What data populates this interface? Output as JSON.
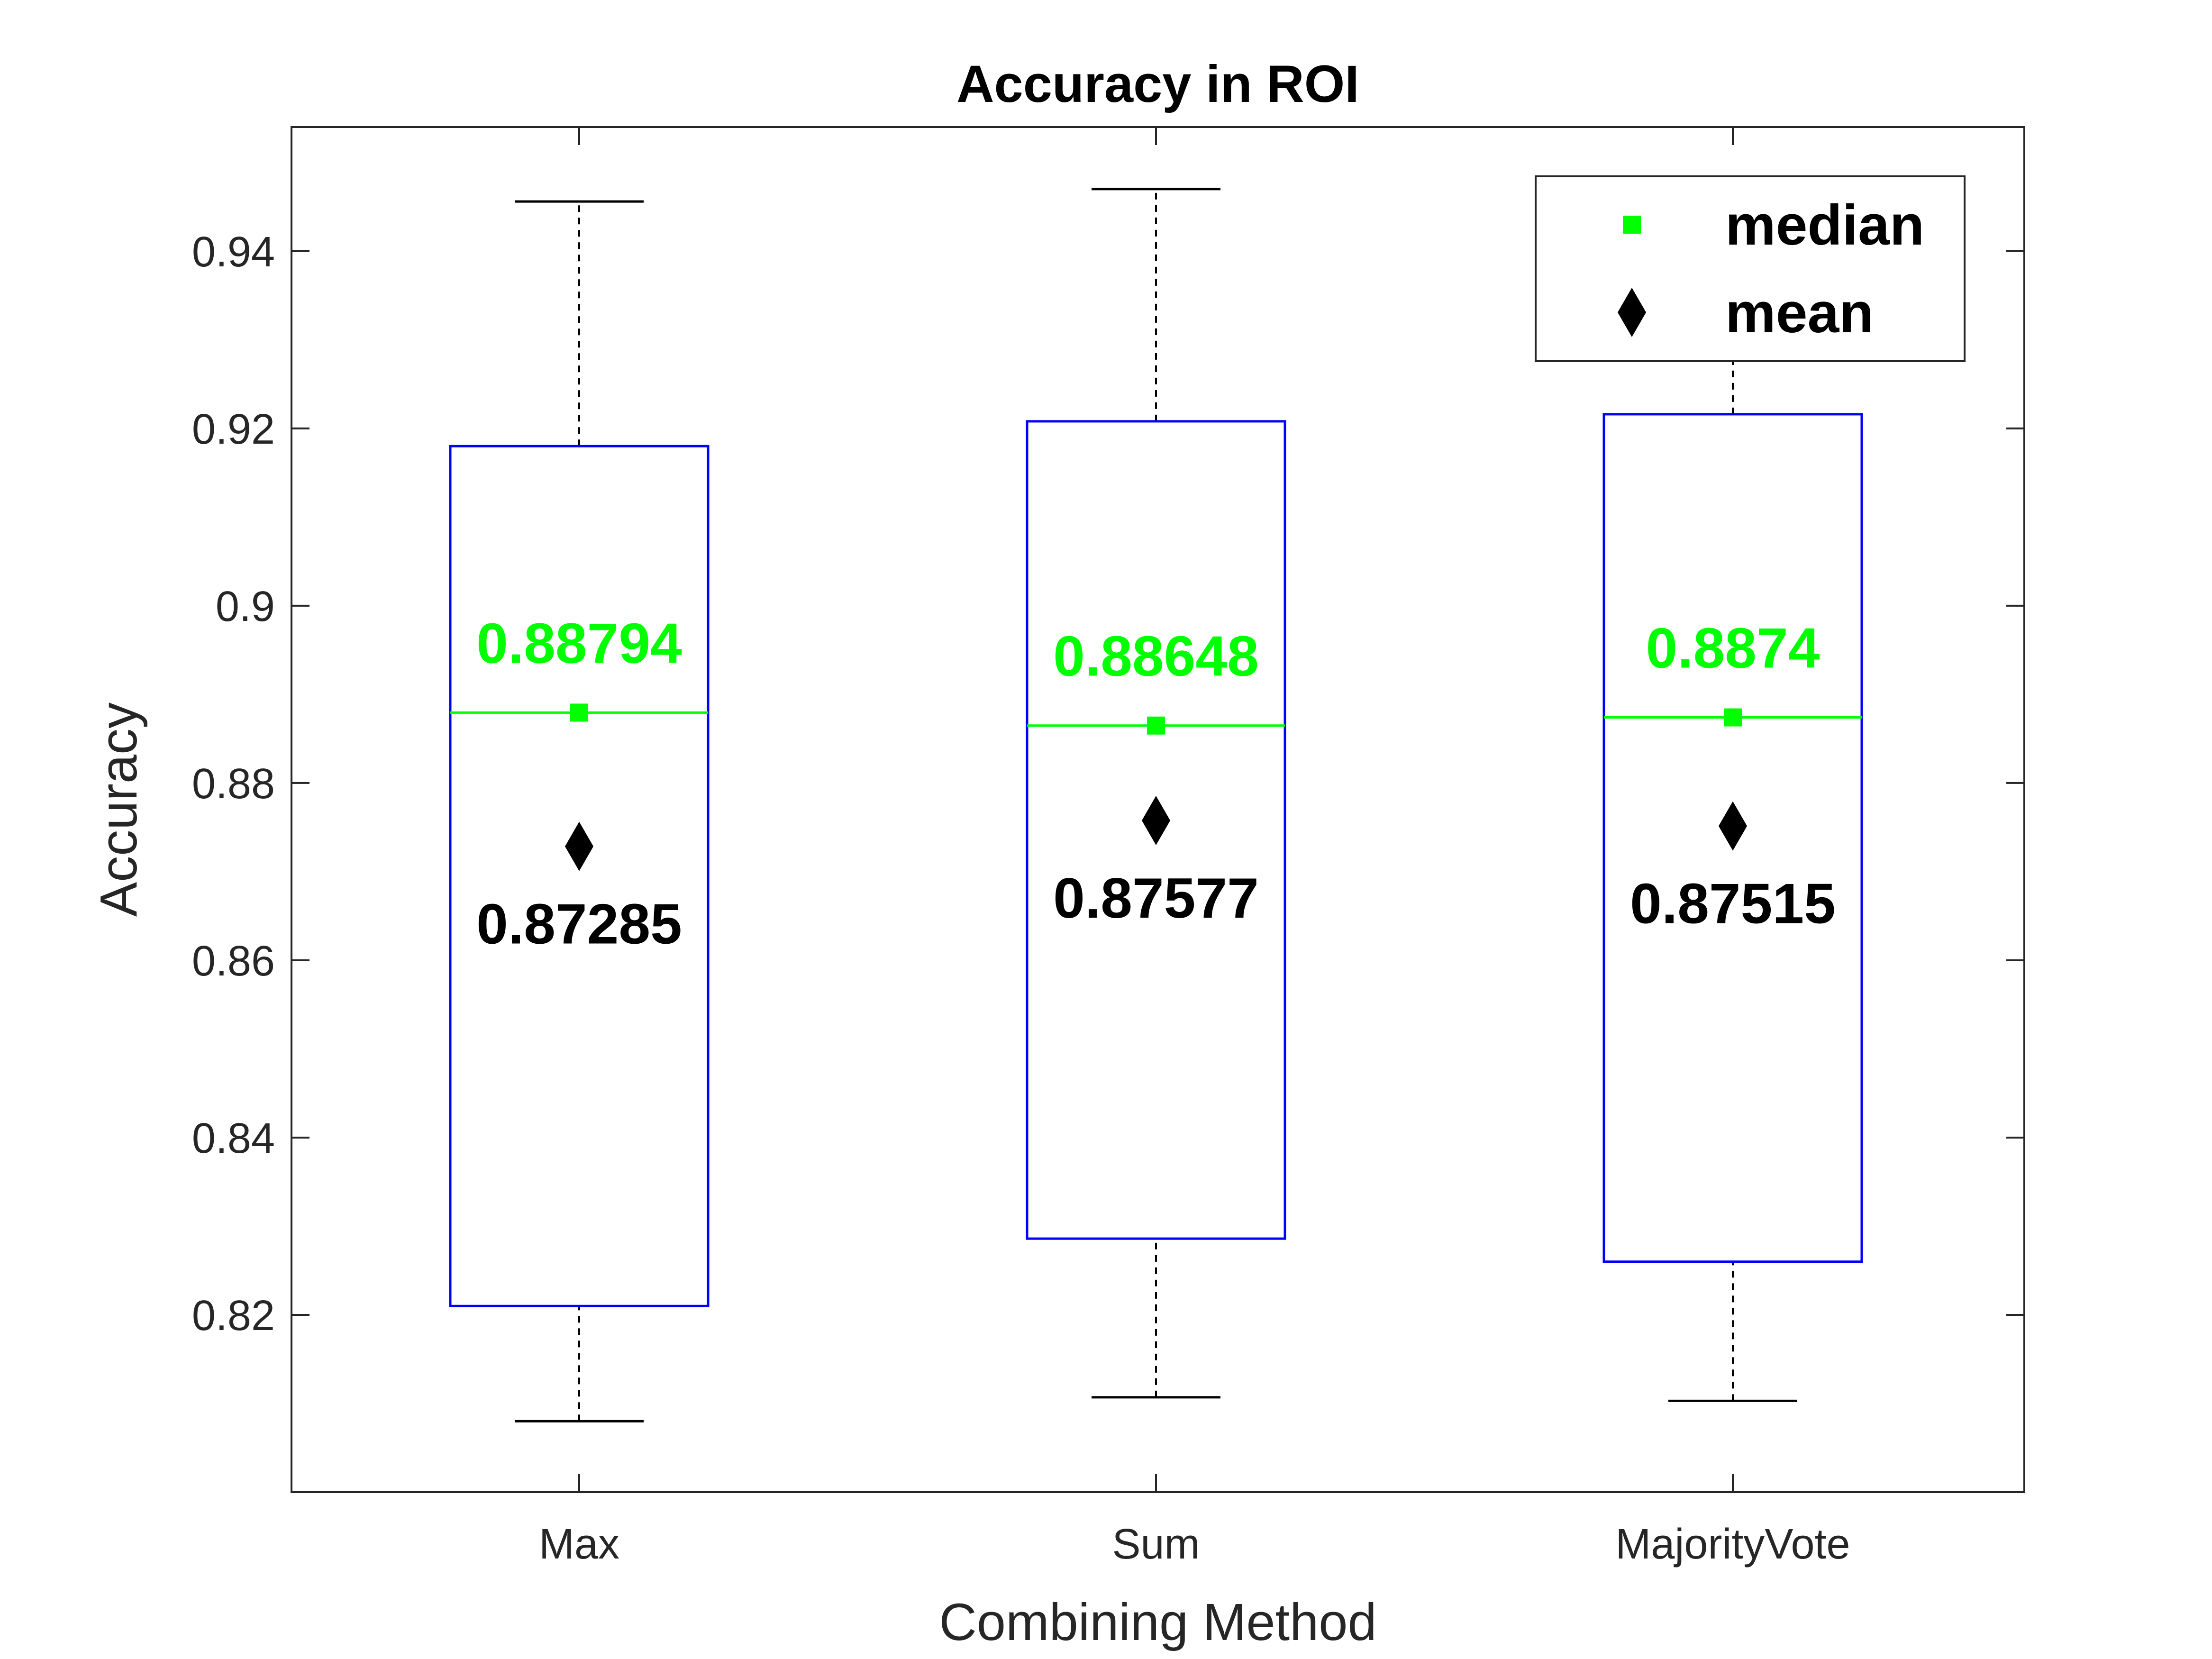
{
  "chart_data": {
    "type": "box",
    "title": "Accuracy in ROI",
    "xlabel": "Combining Method",
    "ylabel": "Accuracy",
    "categories": [
      "Max",
      "Sum",
      "MajorityVote"
    ],
    "ylim": [
      0.8,
      0.954
    ],
    "yticks": [
      0.82,
      0.84,
      0.86,
      0.88,
      0.9,
      0.92,
      0.94
    ],
    "ytick_labels": [
      "0.82",
      "0.84",
      "0.86",
      "0.88",
      "0.9",
      "0.92",
      "0.94"
    ],
    "boxes": [
      {
        "category": "Max",
        "whisker_low": 0.808,
        "q1": 0.821,
        "median": 0.88794,
        "q3": 0.918,
        "whisker_high": 0.9456,
        "mean": 0.87285,
        "median_label": "0.88794",
        "mean_label": "0.87285"
      },
      {
        "category": "Sum",
        "whisker_low": 0.8107,
        "q1": 0.8286,
        "median": 0.88648,
        "q3": 0.9208,
        "whisker_high": 0.947,
        "mean": 0.87577,
        "median_label": "0.88648",
        "mean_label": "0.87577"
      },
      {
        "category": "MajorityVote",
        "whisker_low": 0.8103,
        "q1": 0.826,
        "median": 0.8874,
        "q3": 0.9216,
        "whisker_high": 0.9278,
        "mean": 0.87515,
        "median_label": "0.8874",
        "mean_label": "0.87515"
      }
    ],
    "legend": {
      "position": "top-right",
      "entries": [
        {
          "label": "median",
          "marker": "square",
          "color": "#00ff00"
        },
        {
          "label": "mean",
          "marker": "diamond",
          "color": "#000000"
        }
      ]
    },
    "colors": {
      "box": "#0000ff",
      "median": "#00ff00",
      "mean": "#000000",
      "whisker": "#000000"
    },
    "grid": false
  }
}
